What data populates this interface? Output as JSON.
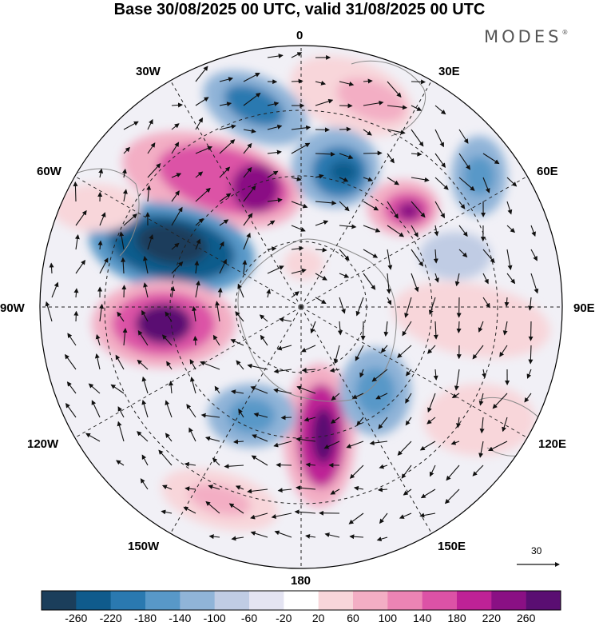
{
  "title": "Base 30/08/2025 00 UTC, valid 31/08/2025 00 UTC",
  "brand": "MODES",
  "brand_mark": "®",
  "longitude_labels": {
    "lon_0": "0",
    "lon_30e": "30E",
    "lon_60e": "60E",
    "lon_90e": "90E",
    "lon_120e": "120E",
    "lon_150e": "150E",
    "lon_180": "180",
    "lon_150w": "150W",
    "lon_120w": "120W",
    "lon_90w": "90W",
    "lon_60w": "60W",
    "lon_30w": "30W"
  },
  "wind_reference": {
    "value": "30"
  },
  "colorbar": {
    "colors": [
      "#1b3e5b",
      "#0f5b8c",
      "#2a79b0",
      "#5898c8",
      "#90b4d8",
      "#c0cce4",
      "#e4e4f2",
      "#ffffff",
      "#f8d6da",
      "#f3aec4",
      "#ec84b4",
      "#dc52a6",
      "#be2296",
      "#8a1084",
      "#5a0e72"
    ],
    "labels": [
      "-260",
      "-220",
      "-180",
      "-140",
      "-100",
      "-60",
      "-20",
      "20",
      "60",
      "100",
      "140",
      "180",
      "220",
      "260"
    ]
  }
}
